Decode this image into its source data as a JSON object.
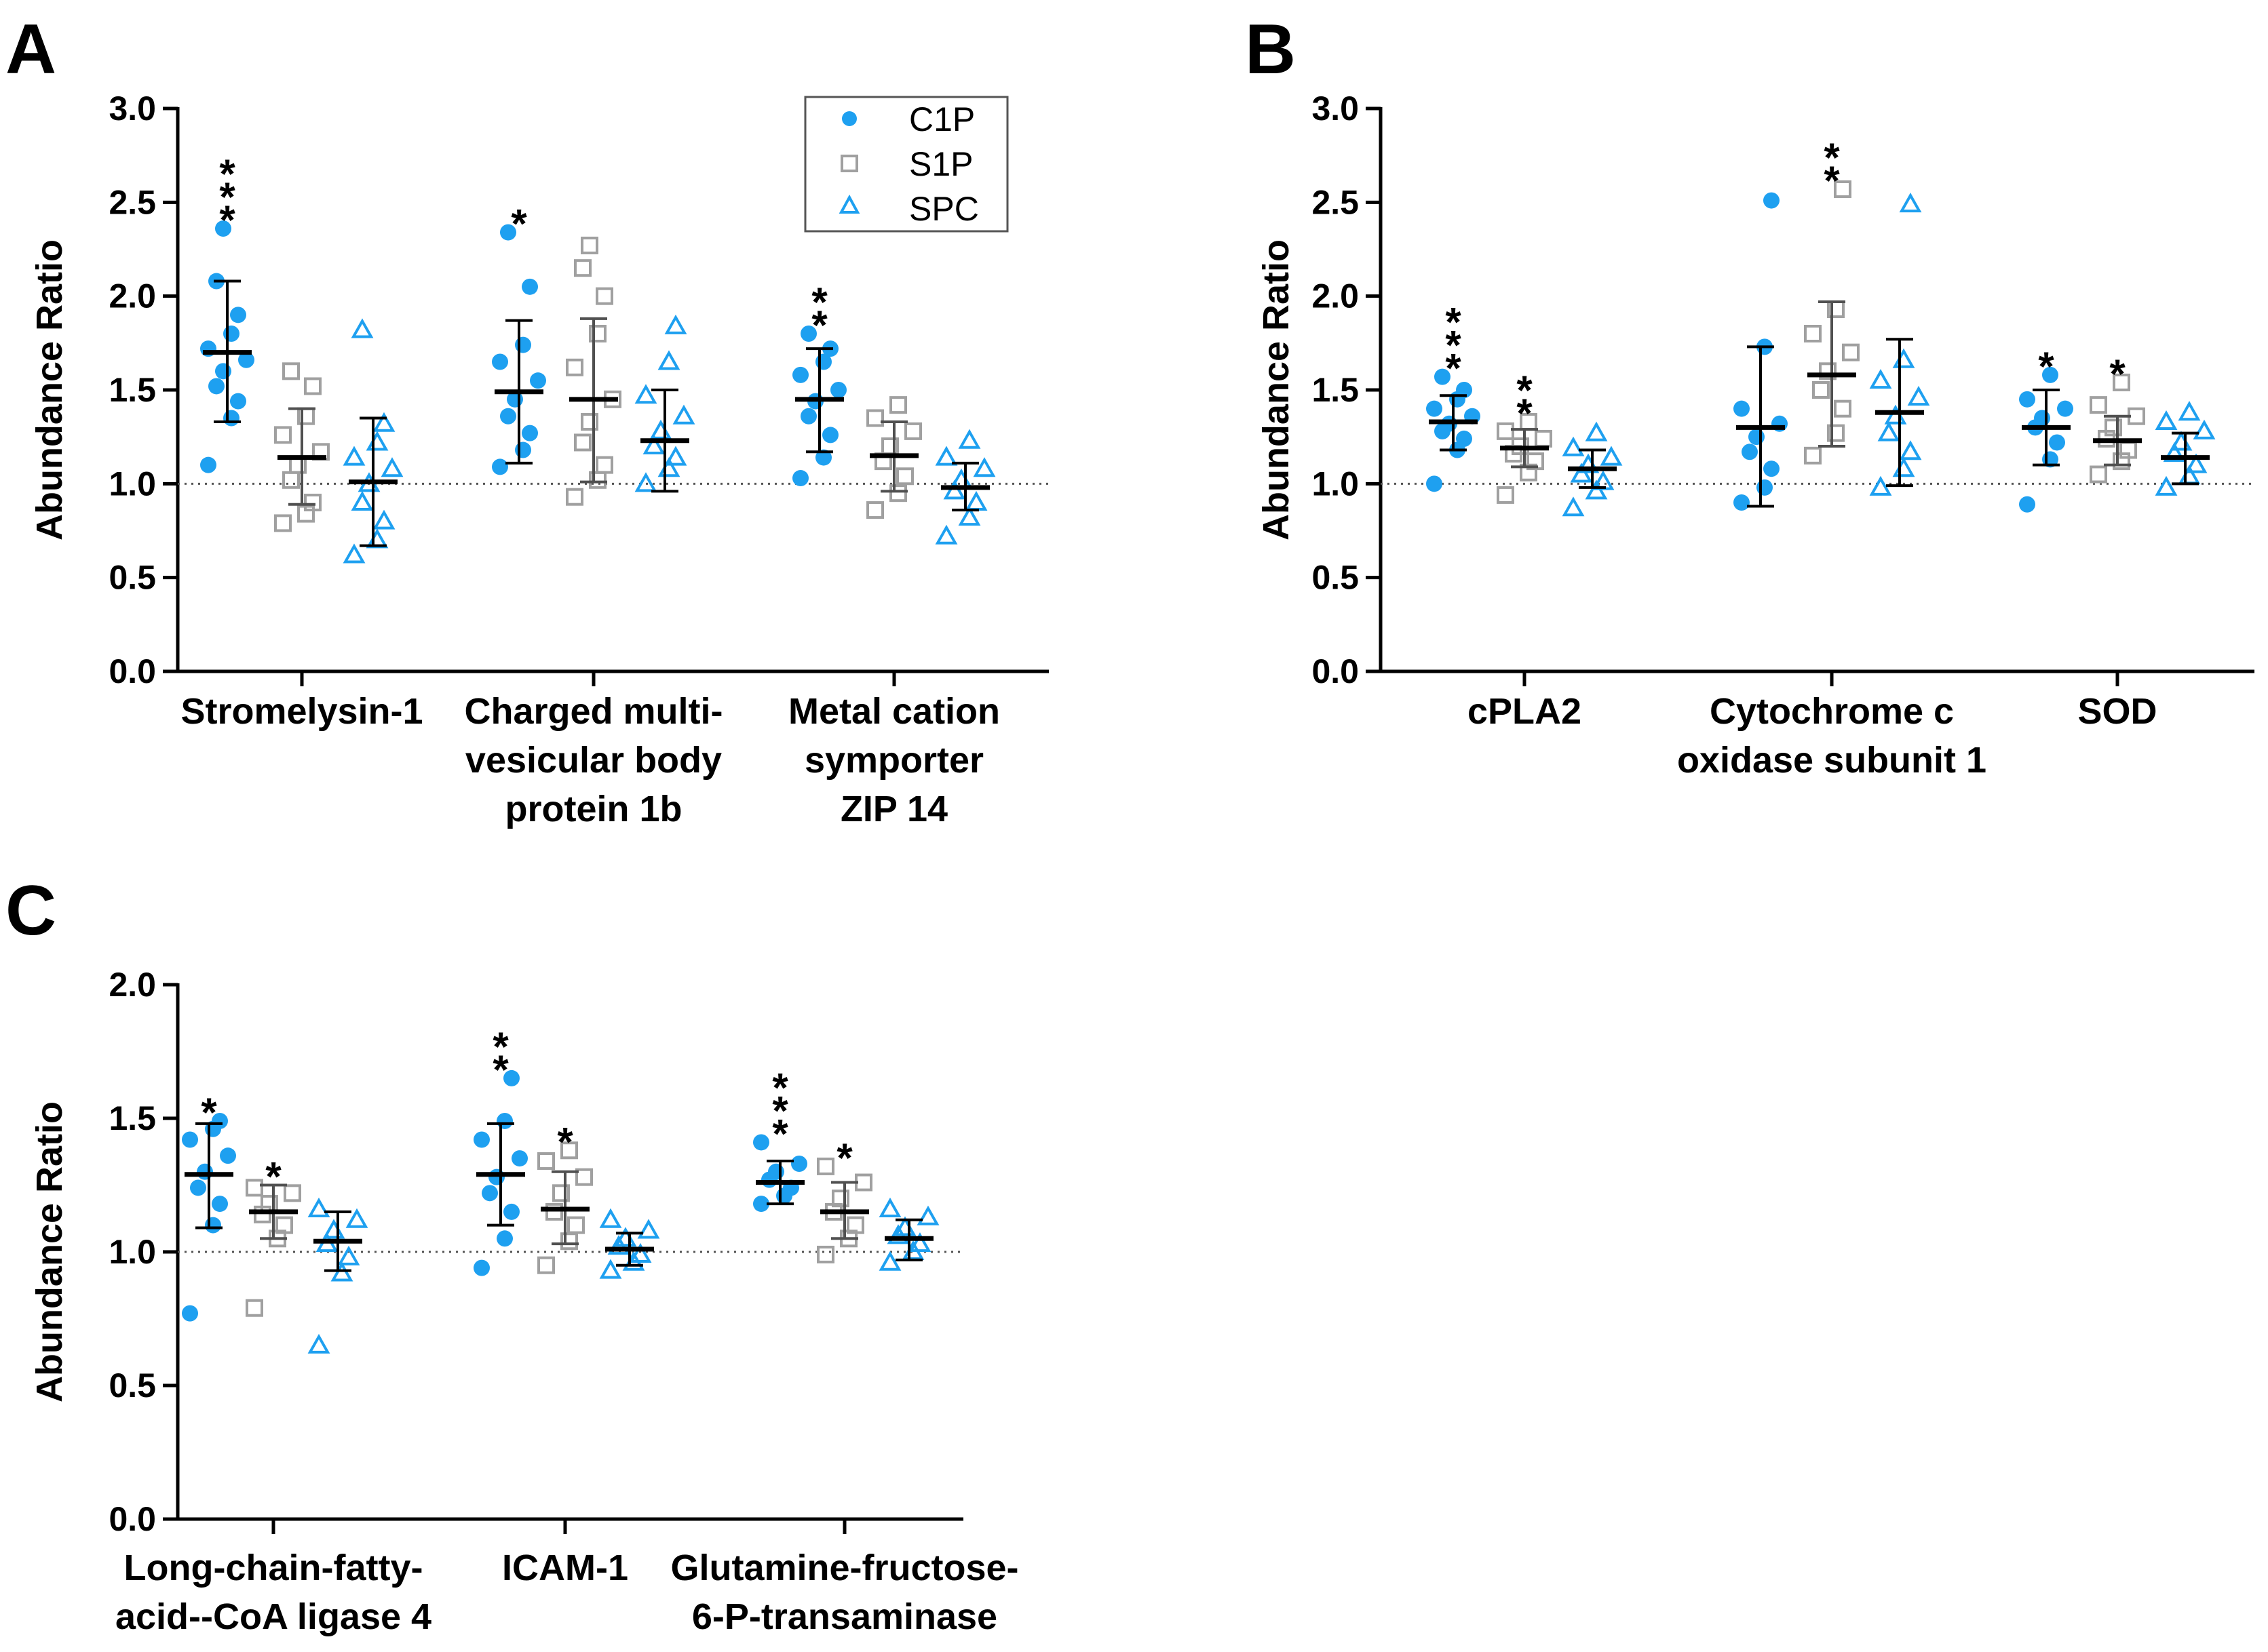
{
  "colors": {
    "c1p": "#1ea0f0",
    "s1p": "#a0a0a0",
    "spc": "#1ea0f0",
    "axis": "#000000",
    "ref": "#555555"
  },
  "legend": {
    "items": [
      {
        "label": "C1P",
        "marker": "circle-filled"
      },
      {
        "label": "S1P",
        "marker": "square-open"
      },
      {
        "label": "SPC",
        "marker": "triangle-open"
      }
    ]
  },
  "chart_data": [
    {
      "panel": "A",
      "type": "scatter",
      "title": "",
      "ylabel": "Abundance Ratio",
      "ylim": [
        0,
        3
      ],
      "yticks": [
        "0.0",
        "0.5",
        "1.0",
        "1.5",
        "2.0",
        "2.5",
        "3.0"
      ],
      "reference_line": 1.0,
      "categories": [
        {
          "label": [
            "Stromelysin-1"
          ],
          "groups": [
            {
              "series": "C1P",
              "mean": 1.7,
              "sd_low": 1.33,
              "sd_high": 2.08,
              "sig": "***",
              "points": [
                1.1,
                1.35,
                1.44,
                1.52,
                1.6,
                1.66,
                1.72,
                1.8,
                1.9,
                2.08,
                2.36
              ]
            },
            {
              "series": "S1P",
              "mean": 1.14,
              "sd_low": 0.89,
              "sd_high": 1.4,
              "sig": "",
              "points": [
                0.79,
                0.84,
                0.9,
                1.02,
                1.1,
                1.17,
                1.26,
                1.36,
                1.52,
                1.6
              ]
            },
            {
              "series": "SPC",
              "mean": 1.01,
              "sd_low": 0.67,
              "sd_high": 1.35,
              "sig": "",
              "points": [
                0.62,
                0.7,
                0.8,
                0.9,
                1.0,
                1.08,
                1.14,
                1.22,
                1.32,
                1.82
              ]
            }
          ]
        },
        {
          "label": [
            "Charged multi-",
            "vesicular body",
            "protein 1b"
          ],
          "groups": [
            {
              "series": "C1P",
              "mean": 1.49,
              "sd_low": 1.11,
              "sd_high": 1.87,
              "sig": "*",
              "points": [
                1.09,
                1.18,
                1.27,
                1.36,
                1.45,
                1.55,
                1.65,
                1.74,
                2.05,
                2.34
              ]
            },
            {
              "series": "S1P",
              "mean": 1.45,
              "sd_low": 1.01,
              "sd_high": 1.88,
              "sig": "",
              "points": [
                0.93,
                1.02,
                1.1,
                1.22,
                1.33,
                1.45,
                1.62,
                1.8,
                2.0,
                2.15,
                2.27
              ]
            },
            {
              "series": "SPC",
              "mean": 1.23,
              "sd_low": 0.96,
              "sd_high": 1.5,
              "sig": "",
              "points": [
                1.0,
                1.08,
                1.14,
                1.2,
                1.28,
                1.36,
                1.47,
                1.65,
                1.84
              ]
            }
          ]
        },
        {
          "label": [
            "Metal cation",
            "symporter",
            "ZIP 14"
          ],
          "groups": [
            {
              "series": "C1P",
              "mean": 1.45,
              "sd_low": 1.17,
              "sd_high": 1.72,
              "sig": "**",
              "points": [
                1.03,
                1.14,
                1.26,
                1.36,
                1.44,
                1.5,
                1.58,
                1.65,
                1.72,
                1.8
              ]
            },
            {
              "series": "S1P",
              "mean": 1.15,
              "sd_low": 0.96,
              "sd_high": 1.33,
              "sig": "",
              "points": [
                0.86,
                0.95,
                1.04,
                1.12,
                1.2,
                1.28,
                1.35,
                1.42
              ]
            },
            {
              "series": "SPC",
              "mean": 0.98,
              "sd_low": 0.86,
              "sd_high": 1.11,
              "sig": "",
              "points": [
                0.72,
                0.82,
                0.9,
                0.96,
                1.02,
                1.08,
                1.14,
                1.23
              ]
            }
          ]
        }
      ]
    },
    {
      "panel": "B",
      "type": "scatter",
      "title": "",
      "ylabel": "Abundance Ratio",
      "ylim": [
        0,
        3
      ],
      "yticks": [
        "0.0",
        "0.5",
        "1.0",
        "1.5",
        "2.0",
        "2.5",
        "3.0"
      ],
      "reference_line": 1.0,
      "categories": [
        {
          "label": [
            "cPLA2"
          ],
          "groups": [
            {
              "series": "C1P",
              "mean": 1.33,
              "sd_low": 1.18,
              "sd_high": 1.47,
              "sig": "***",
              "points": [
                1.0,
                1.18,
                1.24,
                1.28,
                1.32,
                1.36,
                1.4,
                1.45,
                1.5,
                1.57
              ]
            },
            {
              "series": "S1P",
              "mean": 1.19,
              "sd_low": 1.09,
              "sd_high": 1.29,
              "sig": "**",
              "points": [
                0.94,
                1.06,
                1.12,
                1.16,
                1.2,
                1.24,
                1.28,
                1.33
              ]
            },
            {
              "series": "SPC",
              "mean": 1.08,
              "sd_low": 0.98,
              "sd_high": 1.18,
              "sig": "",
              "points": [
                0.87,
                0.96,
                1.01,
                1.05,
                1.1,
                1.14,
                1.19,
                1.27
              ]
            }
          ]
        },
        {
          "label": [
            "Cytochrome c",
            "oxidase subunit 1"
          ],
          "groups": [
            {
              "series": "C1P",
              "mean": 1.3,
              "sd_low": 0.88,
              "sd_high": 1.73,
              "sig": "",
              "points": [
                0.9,
                0.98,
                1.08,
                1.17,
                1.25,
                1.32,
                1.4,
                1.73,
                2.51
              ]
            },
            {
              "series": "S1P",
              "mean": 1.58,
              "sd_low": 1.2,
              "sd_high": 1.97,
              "sig": "**",
              "points": [
                1.15,
                1.27,
                1.4,
                1.5,
                1.6,
                1.7,
                1.8,
                1.93,
                2.57
              ]
            },
            {
              "series": "SPC",
              "mean": 1.38,
              "sd_low": 0.99,
              "sd_high": 1.77,
              "sig": "",
              "points": [
                0.98,
                1.08,
                1.17,
                1.27,
                1.36,
                1.46,
                1.55,
                1.66,
                2.49
              ]
            }
          ]
        },
        {
          "label": [
            "SOD"
          ],
          "groups": [
            {
              "series": "C1P",
              "mean": 1.3,
              "sd_low": 1.1,
              "sd_high": 1.5,
              "sig": "*",
              "points": [
                0.89,
                1.13,
                1.22,
                1.3,
                1.35,
                1.4,
                1.45,
                1.58
              ]
            },
            {
              "series": "S1P",
              "mean": 1.23,
              "sd_low": 1.1,
              "sd_high": 1.36,
              "sig": "*",
              "points": [
                1.05,
                1.12,
                1.18,
                1.24,
                1.3,
                1.36,
                1.42,
                1.54
              ]
            },
            {
              "series": "SPC",
              "mean": 1.14,
              "sd_low": 1.0,
              "sd_high": 1.27,
              "sig": "",
              "points": [
                0.98,
                1.04,
                1.1,
                1.16,
                1.22,
                1.28,
                1.33,
                1.38
              ]
            }
          ]
        }
      ]
    },
    {
      "panel": "C",
      "type": "scatter",
      "title": "",
      "ylabel": "Abundance Ratio",
      "ylim": [
        0,
        2
      ],
      "yticks": [
        "0.0",
        "0.5",
        "1.0",
        "1.5",
        "2.0"
      ],
      "reference_line": 1.0,
      "categories": [
        {
          "label": [
            "Long-chain-fatty-",
            "acid--CoA ligase 4"
          ],
          "groups": [
            {
              "series": "C1P",
              "mean": 1.29,
              "sd_low": 1.09,
              "sd_high": 1.48,
              "sig": "*",
              "points": [
                0.77,
                1.1,
                1.18,
                1.24,
                1.3,
                1.36,
                1.42,
                1.46,
                1.49
              ]
            },
            {
              "series": "S1P",
              "mean": 1.15,
              "sd_low": 1.05,
              "sd_high": 1.25,
              "sig": "*",
              "points": [
                0.79,
                1.05,
                1.1,
                1.14,
                1.18,
                1.22,
                1.24
              ]
            },
            {
              "series": "SPC",
              "mean": 1.04,
              "sd_low": 0.93,
              "sd_high": 1.15,
              "sig": "",
              "points": [
                0.65,
                0.92,
                0.98,
                1.03,
                1.08,
                1.12,
                1.16
              ]
            }
          ]
        },
        {
          "label": [
            "ICAM-1"
          ],
          "groups": [
            {
              "series": "C1P",
              "mean": 1.29,
              "sd_low": 1.1,
              "sd_high": 1.48,
              "sig": "**",
              "points": [
                0.94,
                1.05,
                1.15,
                1.22,
                1.28,
                1.35,
                1.42,
                1.49,
                1.65
              ]
            },
            {
              "series": "S1P",
              "mean": 1.16,
              "sd_low": 1.03,
              "sd_high": 1.3,
              "sig": "*",
              "points": [
                0.95,
                1.04,
                1.1,
                1.15,
                1.22,
                1.28,
                1.34,
                1.38
              ]
            },
            {
              "series": "SPC",
              "mean": 1.01,
              "sd_low": 0.95,
              "sd_high": 1.07,
              "sig": "",
              "points": [
                0.93,
                0.96,
                0.99,
                1.02,
                1.05,
                1.08,
                1.12
              ]
            }
          ]
        },
        {
          "label": [
            "Glutamine-fructose-",
            "6-P-transaminase"
          ],
          "groups": [
            {
              "series": "C1P",
              "mean": 1.26,
              "sd_low": 1.18,
              "sd_high": 1.34,
              "sig": "***",
              "points": [
                1.18,
                1.21,
                1.24,
                1.27,
                1.3,
                1.33,
                1.41
              ]
            },
            {
              "series": "S1P",
              "mean": 1.15,
              "sd_low": 1.05,
              "sd_high": 1.26,
              "sig": "*",
              "points": [
                0.99,
                1.05,
                1.1,
                1.15,
                1.2,
                1.26,
                1.32
              ]
            },
            {
              "series": "SPC",
              "mean": 1.05,
              "sd_low": 0.97,
              "sd_high": 1.12,
              "sig": "",
              "points": [
                0.96,
                1.0,
                1.03,
                1.06,
                1.09,
                1.13,
                1.16
              ]
            }
          ]
        }
      ]
    }
  ]
}
